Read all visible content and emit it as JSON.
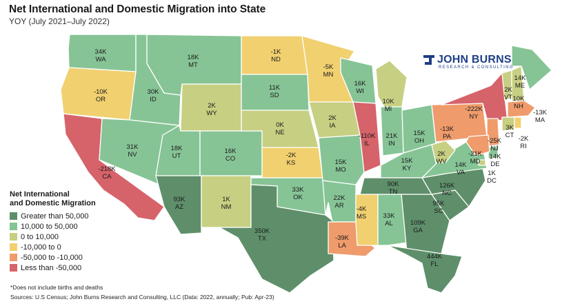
{
  "title": "Net International and Domestic Migration into State",
  "subtitle": "YOY (July 2021–July 2022)",
  "logo": {
    "name": "JOHN BURNS",
    "sub": "RESEARCH & CONSULTING",
    "icon": "jbrc-logo-icon",
    "color": "#1e3e86"
  },
  "legend": {
    "title_line1": "Net International",
    "title_line2": "and Domestic Migration",
    "items": [
      {
        "label": "Greater than 50,000",
        "color": "#5e8f6a"
      },
      {
        "label": "10,000 to 50,000",
        "color": "#86c495"
      },
      {
        "label": "0 to 10,000",
        "color": "#c7cf82"
      },
      {
        "label": "-10,000 to 0",
        "color": "#f1d070"
      },
      {
        "label": "-50,000 to -10,000",
        "color": "#ef9b6c"
      },
      {
        "label": "Less than -50,000",
        "color": "#d6636a"
      }
    ]
  },
  "states": [
    {
      "abbr": "WA",
      "value": "34K"
    },
    {
      "abbr": "OR",
      "value": "-10K"
    },
    {
      "abbr": "CA",
      "value": "-218K"
    },
    {
      "abbr": "ID",
      "value": "30K"
    },
    {
      "abbr": "NV",
      "value": "31K"
    },
    {
      "abbr": "MT",
      "value": "18K"
    },
    {
      "abbr": "WY",
      "value": "2K"
    },
    {
      "abbr": "UT",
      "value": "18K"
    },
    {
      "abbr": "CO",
      "value": "16K"
    },
    {
      "abbr": "AZ",
      "value": "93K"
    },
    {
      "abbr": "NM",
      "value": "1K"
    },
    {
      "abbr": "ND",
      "value": "-1K"
    },
    {
      "abbr": "SD",
      "value": "11K"
    },
    {
      "abbr": "NE",
      "value": "0K"
    },
    {
      "abbr": "KS",
      "value": "-2K"
    },
    {
      "abbr": "OK",
      "value": "33K"
    },
    {
      "abbr": "TX",
      "value": "350K"
    },
    {
      "abbr": "MN",
      "value": "-5K"
    },
    {
      "abbr": "IA",
      "value": "2K"
    },
    {
      "abbr": "MO",
      "value": "15K"
    },
    {
      "abbr": "AR",
      "value": "22K"
    },
    {
      "abbr": "LA",
      "value": "-39K"
    },
    {
      "abbr": "WI",
      "value": "16K"
    },
    {
      "abbr": "IL",
      "value": "-110K"
    },
    {
      "abbr": "MI",
      "value": "10K"
    },
    {
      "abbr": "IN",
      "value": "21K"
    },
    {
      "abbr": "OH",
      "value": "15K"
    },
    {
      "abbr": "KY",
      "value": "15K"
    },
    {
      "abbr": "TN",
      "value": "90K"
    },
    {
      "abbr": "MS",
      "value": "-4K"
    },
    {
      "abbr": "AL",
      "value": "33K"
    },
    {
      "abbr": "GA",
      "value": "109K"
    },
    {
      "abbr": "FL",
      "value": "444K"
    },
    {
      "abbr": "SC",
      "value": "95K"
    },
    {
      "abbr": "NC",
      "value": "126K"
    },
    {
      "abbr": "VA",
      "value": "14K"
    },
    {
      "abbr": "WV",
      "value": "2K"
    },
    {
      "abbr": "PA",
      "value": "-13K"
    },
    {
      "abbr": "NY",
      "value": "-222K"
    },
    {
      "abbr": "VT",
      "value": "2K"
    },
    {
      "abbr": "NH",
      "value": "10K"
    },
    {
      "abbr": "ME",
      "value": "14K"
    },
    {
      "abbr": "MA",
      "value": "-13K"
    },
    {
      "abbr": "CT",
      "value": "3K"
    },
    {
      "abbr": "RI",
      "value": "-2K"
    },
    {
      "abbr": "NJ",
      "value": "-25K"
    },
    {
      "abbr": "DE",
      "value": "14K"
    },
    {
      "abbr": "MD",
      "value": "-21K"
    },
    {
      "abbr": "DC",
      "value": "1K"
    }
  ],
  "footnote": "*Does not include births and deaths",
  "source": "Sources: U.S Census; John Burns Research and Consulting, LLC (Data: 2022, annually; Pub: Apr-23)"
}
